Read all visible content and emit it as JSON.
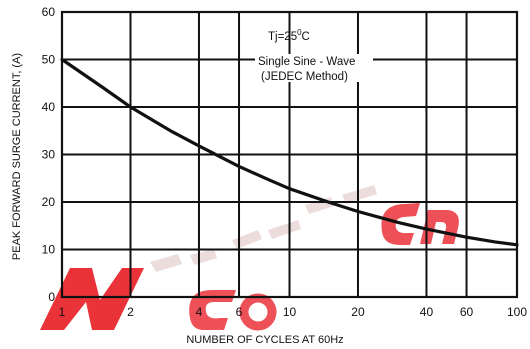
{
  "chart_data": {
    "type": "line",
    "xscale": "log",
    "xlim": [
      1,
      100
    ],
    "ylim": [
      0,
      60
    ],
    "grid": true,
    "x_ticks": [
      1,
      2,
      4,
      6,
      10,
      20,
      40,
      60,
      100
    ],
    "y_ticks": [
      0,
      10,
      20,
      30,
      40,
      50,
      60
    ],
    "xlabel": "NUMBER OF CYCLES AT 60Hz",
    "ylabel": "PEAK FORWARD SURGE CURRENT, (A)",
    "annotations": {
      "tj": "Tj=25",
      "tj_sup": "0",
      "tj_unit": "C",
      "line1": "Single Sine - Wave",
      "line2": "(JEDEC Method)"
    },
    "series": [
      {
        "x": [
          1,
          1.5,
          2,
          3,
          4,
          6,
          8,
          10,
          15,
          20,
          30,
          40,
          60,
          80,
          100
        ],
        "y": [
          50,
          44.2,
          40,
          35.0,
          31.8,
          27.5,
          24.8,
          22.8,
          19.9,
          18.0,
          15.7,
          14.3,
          12.6,
          11.6,
          11.0
        ]
      }
    ],
    "line_color": "#111111",
    "watermark_color": "#e0141e"
  }
}
